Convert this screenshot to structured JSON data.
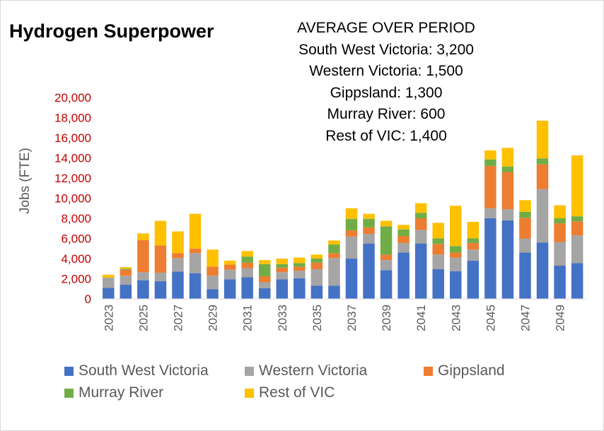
{
  "chart_data": {
    "type": "bar",
    "stacked": true,
    "title": "Hydrogen Superpower",
    "ylabel": "Jobs (FTE)",
    "xlabel": "",
    "ylim": [
      0,
      20000
    ],
    "ytick_values": [
      0,
      2000,
      4000,
      6000,
      8000,
      10000,
      12000,
      14000,
      16000,
      18000,
      20000
    ],
    "ytick_labels": [
      "0",
      "2,000",
      "4,000",
      "6,000",
      "8,000",
      "10,000",
      "12,000",
      "14,000",
      "16,000",
      "18,000",
      "20,000"
    ],
    "categories": [
      "2023",
      "2024",
      "2025",
      "2026",
      "2027",
      "2028",
      "2029",
      "2030",
      "2031",
      "2032",
      "2033",
      "2034",
      "2035",
      "2036",
      "2037",
      "2038",
      "2039",
      "2040",
      "2041",
      "2042",
      "2043",
      "2044",
      "2045",
      "2046",
      "2047",
      "2048",
      "2049",
      "2050"
    ],
    "xtick_labels": [
      "2023",
      "2025",
      "2027",
      "2029",
      "2031",
      "2033",
      "2035",
      "2037",
      "2039",
      "2041",
      "2043",
      "2045",
      "2047",
      "2049"
    ],
    "series": [
      {
        "name": "South West Victoria",
        "color": "#4472C4",
        "values": [
          1100,
          1400,
          1850,
          1750,
          2700,
          2550,
          950,
          1950,
          2150,
          1050,
          1950,
          2050,
          1300,
          1300,
          4000,
          5500,
          2850,
          4600,
          5500,
          2950,
          2750,
          3800,
          8000,
          7800,
          4600,
          5600,
          3300,
          3550
        ]
      },
      {
        "name": "Western Victoria",
        "color": "#A5A5A5",
        "values": [
          1000,
          900,
          800,
          850,
          1350,
          2000,
          1350,
          950,
          900,
          600,
          700,
          750,
          1650,
          2750,
          2200,
          950,
          1000,
          950,
          1350,
          1450,
          1350,
          1100,
          1000,
          1100,
          1400,
          5300,
          2350,
          2750
        ]
      },
      {
        "name": "Gippsland",
        "color": "#ED7D31",
        "values": [
          0,
          600,
          3200,
          2700,
          500,
          450,
          900,
          500,
          550,
          600,
          450,
          400,
          650,
          500,
          600,
          650,
          550,
          700,
          1150,
          1050,
          500,
          650,
          4200,
          3700,
          2050,
          2450,
          1850,
          1400
        ]
      },
      {
        "name": "Murray River",
        "color": "#70AD47",
        "values": [
          0,
          100,
          0,
          0,
          0,
          0,
          0,
          0,
          600,
          1200,
          350,
          350,
          400,
          850,
          1150,
          850,
          2800,
          650,
          550,
          550,
          650,
          450,
          650,
          550,
          600,
          600,
          500,
          500
        ]
      },
      {
        "name": "Rest of VIC",
        "color": "#FFC000",
        "values": [
          300,
          150,
          650,
          2450,
          2150,
          3450,
          1700,
          400,
          550,
          400,
          550,
          550,
          400,
          400,
          1050,
          500,
          550,
          450,
          950,
          1550,
          4000,
          1650,
          900,
          1850,
          1150,
          3750,
          1300,
          6050
        ]
      }
    ],
    "annotations": [
      "AVERAGE OVER PERIOD",
      "South West Victoria: 3,200",
      "Western Victoria: 1,500",
      "Gippsland: 1,300",
      "Murray River: 600",
      "Rest of VIC: 1,400"
    ],
    "legend_position": "bottom",
    "grid": false
  },
  "colors": {
    "ytick": "#C00000",
    "xtick": "#595959",
    "axis": "#D9D9D9"
  }
}
